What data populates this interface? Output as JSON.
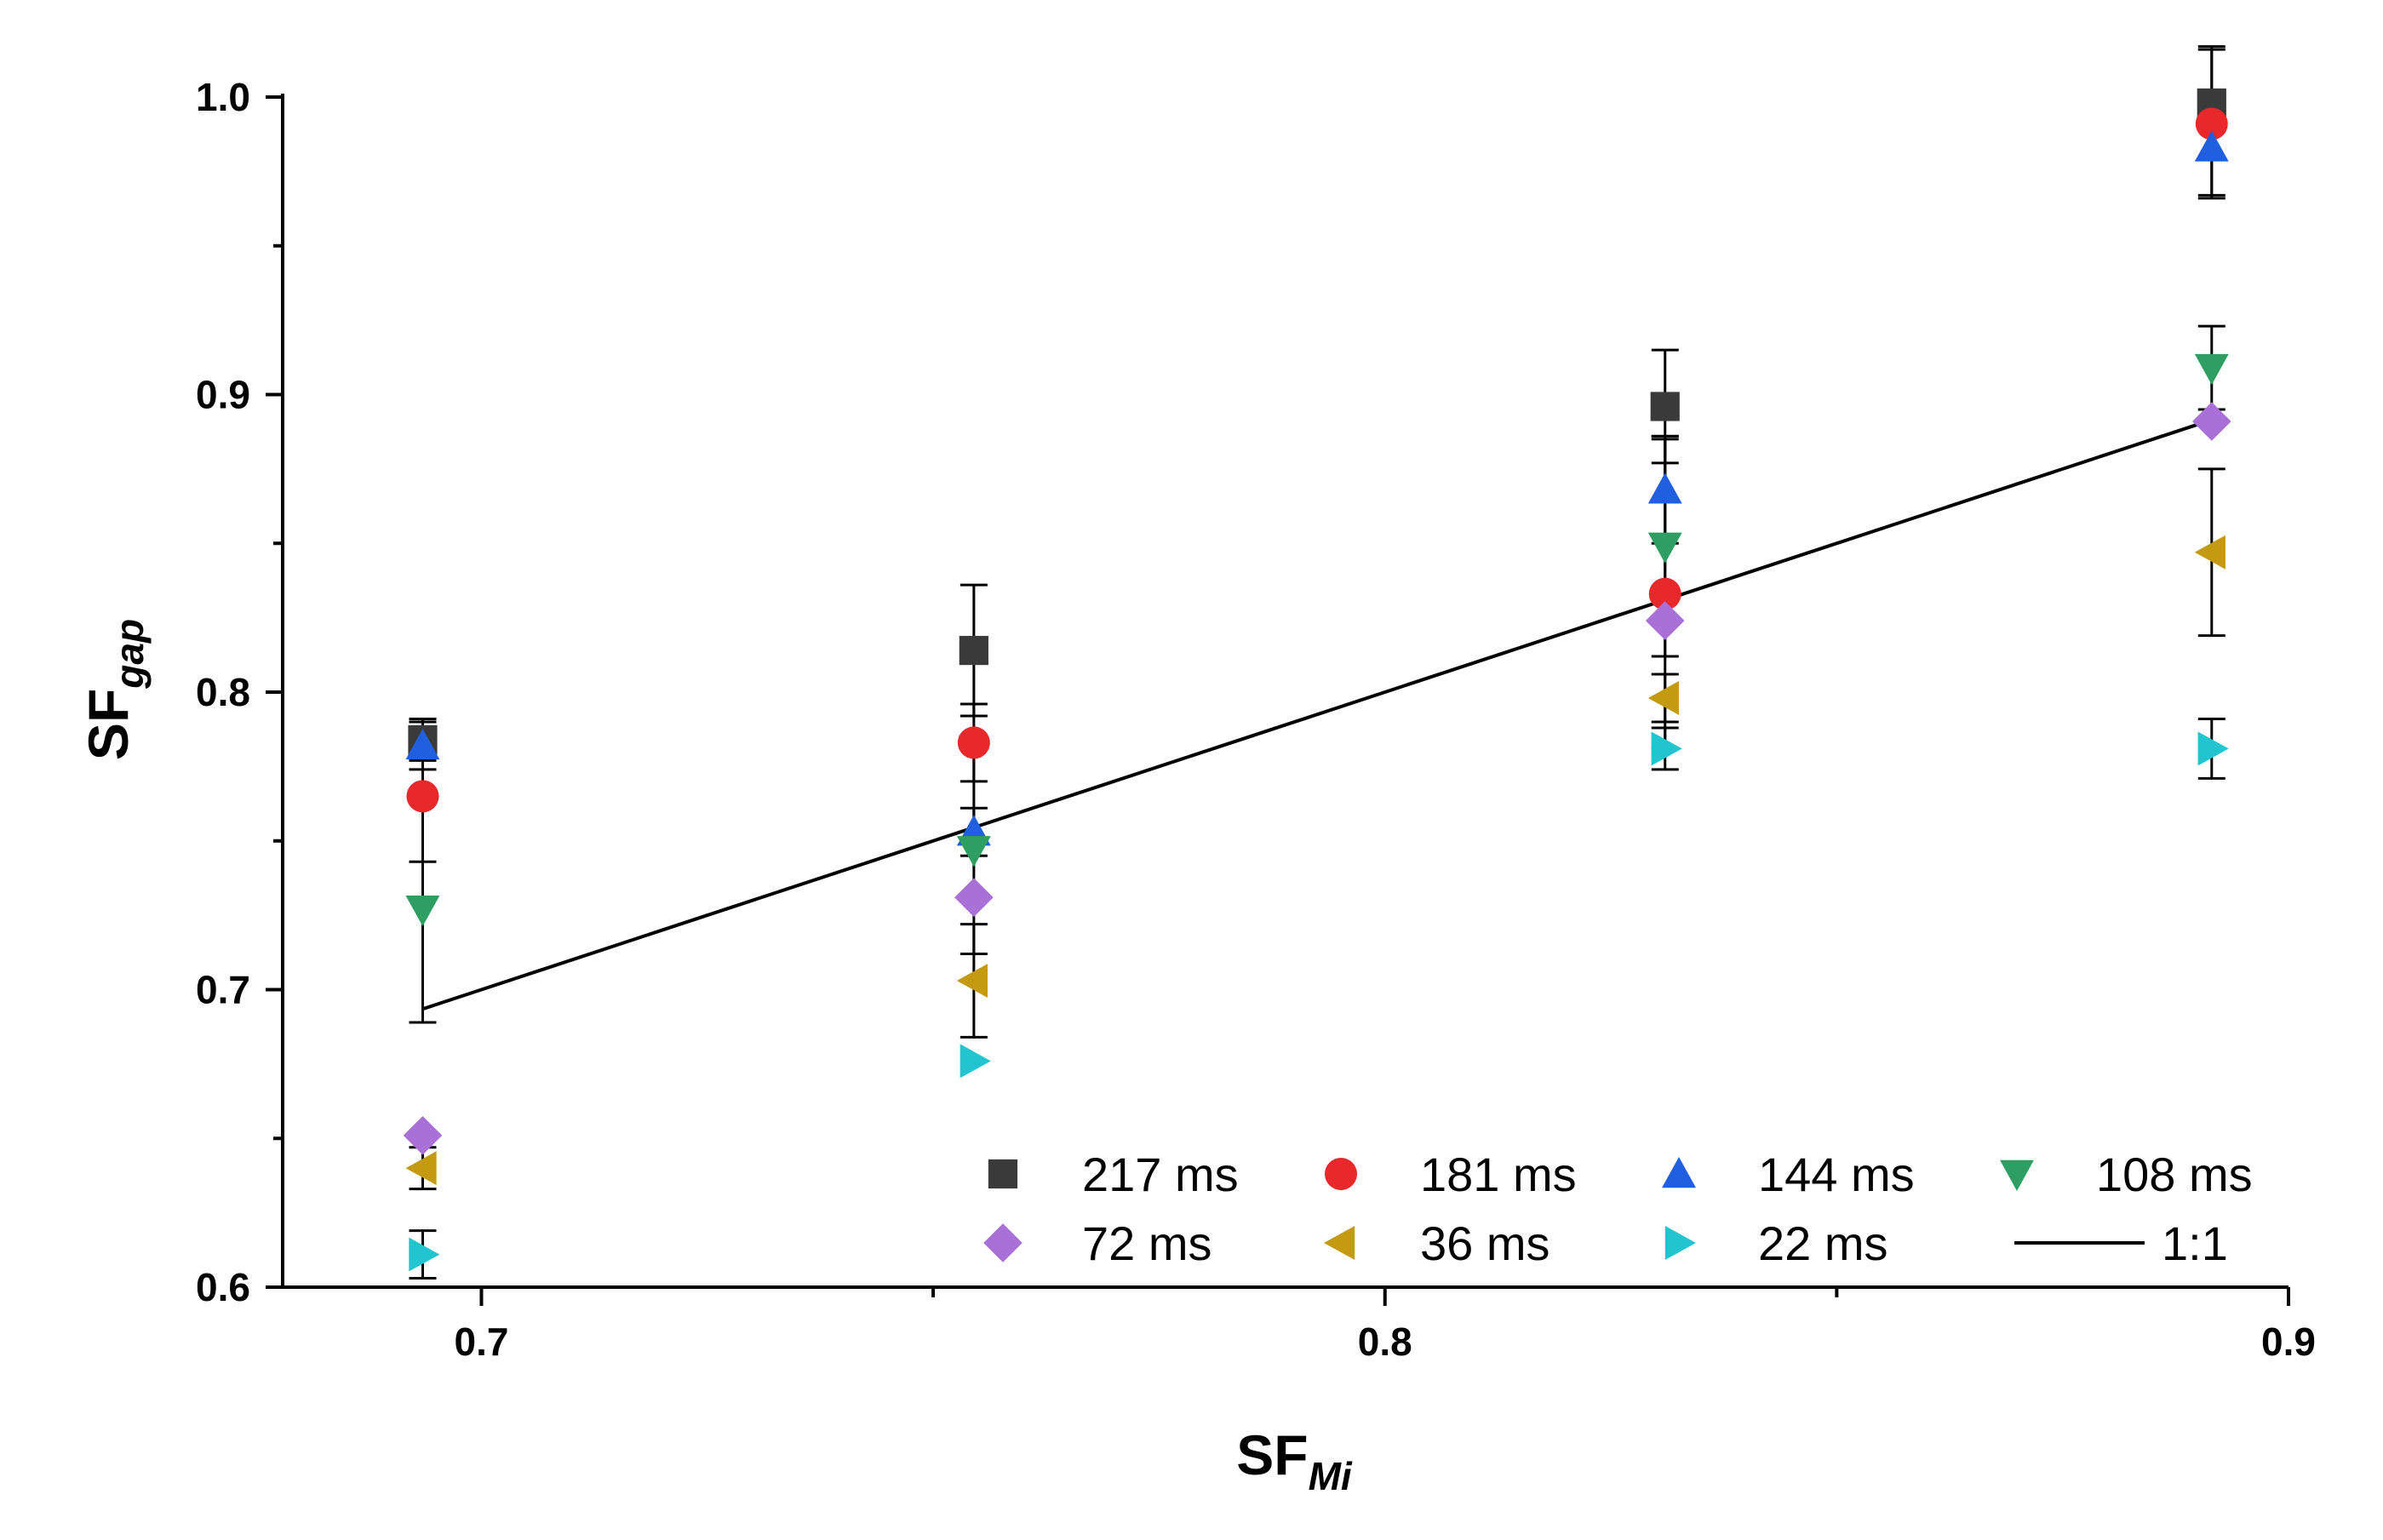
{
  "chart_data": {
    "type": "scatter",
    "title": "",
    "xlabel_main": "SF",
    "xlabel_sub": "Mi",
    "ylabel_main": "SF",
    "ylabel_sub": "gap",
    "xlim": [
      0.678,
      0.9
    ],
    "ylim": [
      0.6,
      1.0
    ],
    "xticks": [
      0.7,
      0.8,
      0.9
    ],
    "xtick_labels": [
      "0.7",
      "0.8",
      "0.9"
    ],
    "yticks": [
      0.6,
      0.7,
      0.8,
      0.9,
      1.0
    ],
    "ytick_labels": [
      "0.6",
      "0.7",
      "0.8",
      "0.9",
      "1.0"
    ],
    "x": [
      0.6935,
      0.7545,
      0.831,
      0.8915
    ],
    "series": [
      {
        "name": "217 ms",
        "marker": "square",
        "color": "#3a3a3a",
        "values": [
          0.784,
          0.814,
          0.896,
          0.998
        ],
        "errors": [
          0.007,
          0.022,
          0.019,
          0.019
        ]
      },
      {
        "name": "181 ms",
        "marker": "circle",
        "color": "#e8282a",
        "values": [
          0.765,
          0.783,
          0.833,
          0.991
        ],
        "errors": [
          0.022,
          0.013,
          0.052,
          0.025
        ]
      },
      {
        "name": "144 ms",
        "marker": "triangle-up",
        "color": "#1f5fe0",
        "values": [
          0.782,
          0.753,
          0.868,
          0.983
        ],
        "errors": [
          0.008,
          0.008,
          0.018,
          0.016
        ]
      },
      {
        "name": "108 ms",
        "marker": "triangle-down",
        "color": "#2e9e62",
        "values": [
          0.727,
          0.747,
          0.849,
          0.909
        ],
        "errors": [
          0.038,
          0.035,
          0.037,
          0.014
        ]
      },
      {
        "name": "72  ms",
        "marker": "diamond",
        "color": "#a970d8",
        "values": [
          0.651,
          0.731,
          0.824,
          0.891
        ],
        "errors": [
          0.0,
          0.0,
          0.0,
          0.0
        ]
      },
      {
        "name": "36 ms",
        "marker": "triangle-left",
        "color": "#c49a10",
        "values": [
          0.64,
          0.703,
          0.798,
          0.847
        ],
        "errors": [
          0.007,
          0.019,
          0.008,
          0.028
        ]
      },
      {
        "name": "22 ms",
        "marker": "triangle-right",
        "color": "#22c5cf",
        "values": [
          0.611,
          0.676,
          0.781,
          0.781
        ],
        "errors": [
          0.008,
          0.0,
          0.007,
          0.01
        ]
      }
    ],
    "reference_line": {
      "name": "1:1",
      "x": [
        0.6935,
        0.8915
      ],
      "y": [
        0.6935,
        0.8915
      ],
      "color": "#000000"
    },
    "legend_position": "bottom-right",
    "grid": false
  }
}
